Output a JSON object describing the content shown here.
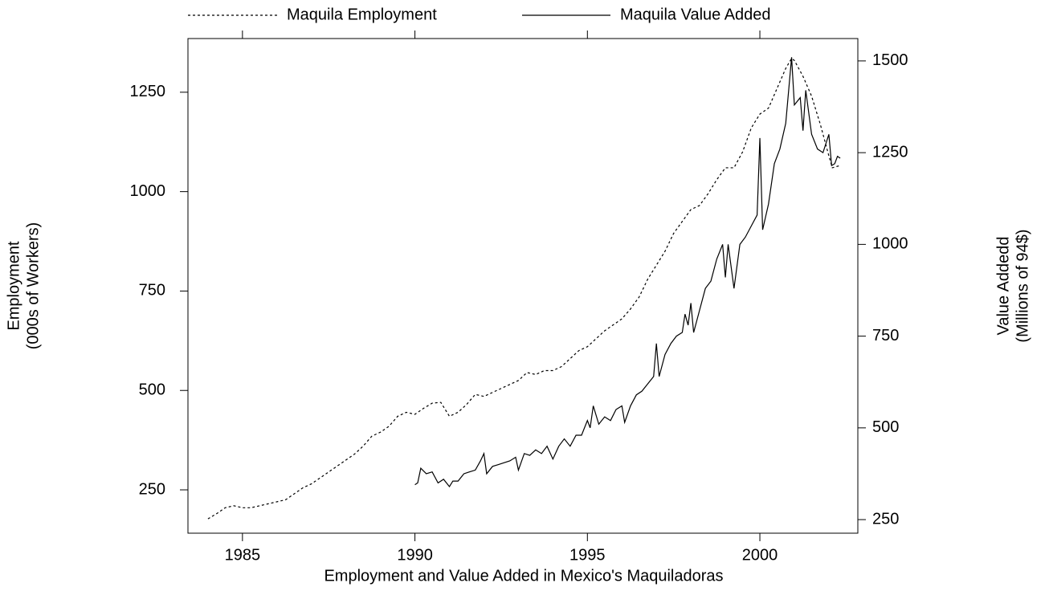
{
  "chart_data": {
    "type": "line",
    "title": "Employment and Value Added in Mexico's Maquiladoras",
    "ylabel": [
      "Employment",
      "(000s of Workers)"
    ],
    "y2label": [
      "Value Addedd",
      "(Millions of 94$)"
    ],
    "xlim": [
      1983.42,
      2002.84
    ],
    "xticks": [
      1985,
      1990,
      1995,
      2000
    ],
    "ylim": [
      141,
      1385
    ],
    "yticks": [
      250,
      500,
      750,
      1000,
      1250
    ],
    "y2lim": [
      213,
      1561
    ],
    "y2ticks": [
      250,
      500,
      750,
      1000,
      1250,
      1500
    ],
    "grid": false,
    "legend": "top",
    "series": [
      {
        "name": "Maquila Employment",
        "color": "#000000",
        "linestyle": "dotted",
        "axis": "y",
        "x": [
          1984.0,
          1984.25,
          1984.5,
          1984.75,
          1985.0,
          1985.25,
          1985.5,
          1985.75,
          1986.0,
          1986.25,
          1986.5,
          1986.75,
          1987.0,
          1987.25,
          1987.5,
          1987.75,
          1988.0,
          1988.25,
          1988.5,
          1988.75,
          1989.0,
          1989.25,
          1989.5,
          1989.75,
          1990.0,
          1990.25,
          1990.5,
          1990.75,
          1991.0,
          1991.25,
          1991.5,
          1991.75,
          1992.0,
          1992.25,
          1992.5,
          1992.75,
          1993.0,
          1993.25,
          1993.5,
          1993.75,
          1994.0,
          1994.25,
          1994.5,
          1994.75,
          1995.0,
          1995.25,
          1995.5,
          1995.75,
          1996.0,
          1996.25,
          1996.5,
          1996.75,
          1997.0,
          1997.25,
          1997.5,
          1997.75,
          1998.0,
          1998.25,
          1998.5,
          1998.75,
          1999.0,
          1999.25,
          1999.5,
          1999.75,
          2000.0,
          2000.25,
          2000.5,
          2000.75,
          2000.92,
          2001.0,
          2001.25,
          2001.5,
          2001.75,
          2002.0,
          2002.1,
          2002.3
        ],
        "values": [
          177,
          190,
          205,
          210,
          205,
          205,
          210,
          215,
          220,
          225,
          240,
          255,
          265,
          280,
          295,
          310,
          325,
          340,
          360,
          385,
          395,
          410,
          435,
          445,
          440,
          455,
          468,
          470,
          435,
          445,
          465,
          490,
          485,
          495,
          505,
          515,
          525,
          545,
          540,
          550,
          550,
          560,
          580,
          600,
          610,
          630,
          650,
          665,
          680,
          705,
          735,
          780,
          815,
          850,
          895,
          925,
          955,
          965,
          995,
          1030,
          1060,
          1060,
          1100,
          1160,
          1195,
          1210,
          1260,
          1310,
          1335,
          1330,
          1290,
          1240,
          1170,
          1090,
          1060,
          1065
        ]
      },
      {
        "name": "Maquila Value Added",
        "color": "#000000",
        "linestyle": "solid",
        "axis": "y2",
        "x": [
          1990.0,
          1990.08,
          1990.17,
          1990.33,
          1990.5,
          1990.67,
          1990.83,
          1991.0,
          1991.1,
          1991.25,
          1991.42,
          1991.58,
          1991.75,
          1991.9,
          1992.0,
          1992.08,
          1992.25,
          1992.42,
          1992.58,
          1992.75,
          1992.92,
          1993.0,
          1993.17,
          1993.33,
          1993.5,
          1993.67,
          1993.83,
          1994.0,
          1994.17,
          1994.33,
          1994.5,
          1994.67,
          1994.83,
          1995.0,
          1995.08,
          1995.17,
          1995.33,
          1995.5,
          1995.67,
          1995.83,
          1996.0,
          1996.08,
          1996.25,
          1996.42,
          1996.58,
          1996.75,
          1996.92,
          1997.0,
          1997.08,
          1997.25,
          1997.42,
          1997.58,
          1997.75,
          1997.83,
          1997.92,
          1998.0,
          1998.08,
          1998.25,
          1998.42,
          1998.58,
          1998.75,
          1998.92,
          1999.0,
          1999.08,
          1999.25,
          1999.42,
          1999.58,
          1999.75,
          1999.92,
          2000.0,
          2000.08,
          2000.25,
          2000.42,
          2000.58,
          2000.75,
          2000.92,
          2001.0,
          2001.17,
          2001.25,
          2001.33,
          2001.5,
          2001.67,
          2001.83,
          2002.0,
          2002.08,
          2002.17,
          2002.25,
          2002.33
        ],
        "values": [
          345,
          350,
          390,
          375,
          380,
          350,
          360,
          340,
          355,
          355,
          375,
          380,
          385,
          410,
          430,
          375,
          395,
          400,
          405,
          410,
          420,
          385,
          430,
          425,
          440,
          430,
          450,
          415,
          450,
          470,
          450,
          480,
          480,
          520,
          500,
          560,
          510,
          530,
          520,
          550,
          560,
          515,
          560,
          590,
          600,
          620,
          640,
          730,
          640,
          700,
          730,
          750,
          760,
          810,
          780,
          840,
          760,
          820,
          880,
          900,
          960,
          1000,
          910,
          1000,
          880,
          1000,
          1020,
          1050,
          1080,
          1290,
          1040,
          1110,
          1220,
          1260,
          1330,
          1510,
          1380,
          1400,
          1310,
          1420,
          1300,
          1260,
          1250,
          1300,
          1215,
          1220,
          1240,
          1235
        ]
      }
    ]
  }
}
